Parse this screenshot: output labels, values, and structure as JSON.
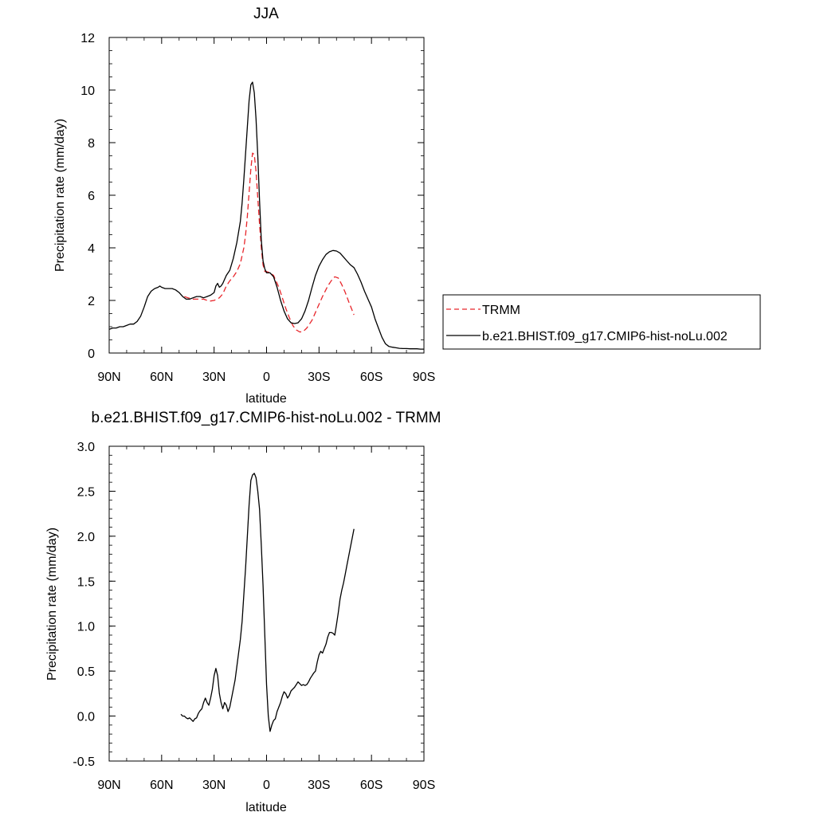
{
  "colors": {
    "model_line": "#000000",
    "trmm_line": "#e8262b",
    "frame": "#000000",
    "background": "#ffffff"
  },
  "chart_data": [
    {
      "type": "line",
      "title": "JJA",
      "xlabel": "latitude",
      "ylabel": "Precipitation rate (mm/day)",
      "xlim": [
        90,
        -90
      ],
      "ylim": [
        0,
        12
      ],
      "x_ticks": [
        {
          "value": 90,
          "label": "90N"
        },
        {
          "value": 60,
          "label": "60N"
        },
        {
          "value": 30,
          "label": "30N"
        },
        {
          "value": 0,
          "label": "0"
        },
        {
          "value": -30,
          "label": "30S"
        },
        {
          "value": -60,
          "label": "60S"
        },
        {
          "value": -90,
          "label": "90S"
        }
      ],
      "y_ticks": [
        {
          "value": 0,
          "label": "0"
        },
        {
          "value": 2,
          "label": "2"
        },
        {
          "value": 4,
          "label": "4"
        },
        {
          "value": 6,
          "label": "6"
        },
        {
          "value": 8,
          "label": "8"
        },
        {
          "value": 10,
          "label": "10"
        },
        {
          "value": 12,
          "label": "12"
        }
      ],
      "grid": false,
      "legend": "right",
      "series": [
        {
          "name": "TRMM",
          "style": "dashed",
          "color": "#e8262b",
          "x": [
            47,
            45,
            42,
            40,
            38,
            36,
            34,
            32,
            30,
            27,
            25,
            23,
            21,
            19,
            17,
            15,
            13,
            12,
            11,
            10,
            9,
            8,
            7,
            6,
            5,
            4,
            3,
            2,
            1,
            0,
            -2,
            -4,
            -5,
            -7,
            -9,
            -11,
            -13,
            -15,
            -17,
            -19,
            -21,
            -23,
            -26,
            -29,
            -32,
            -35,
            -37,
            -39,
            -41,
            -43,
            -45,
            -47,
            -50
          ],
          "y": [
            2.15,
            2.1,
            2.05,
            2.05,
            2.05,
            2.05,
            2.0,
            1.98,
            2.0,
            2.1,
            2.25,
            2.55,
            2.75,
            2.9,
            3.1,
            3.4,
            4.0,
            4.5,
            5.2,
            6.1,
            7.0,
            7.6,
            7.55,
            6.9,
            5.9,
            4.9,
            4.0,
            3.35,
            3.1,
            3.1,
            3.05,
            2.95,
            2.8,
            2.5,
            2.1,
            1.7,
            1.35,
            1.05,
            0.88,
            0.8,
            0.82,
            0.95,
            1.25,
            1.7,
            2.15,
            2.55,
            2.75,
            2.9,
            2.85,
            2.6,
            2.3,
            1.95,
            1.45
          ]
        },
        {
          "name": "b.e21.BHIST.f09_g17.CMIP6-hist-noLu.002",
          "style": "solid",
          "color": "#000000",
          "x": [
            90,
            88,
            86,
            84,
            82,
            80,
            78,
            76,
            74,
            72,
            70,
            68,
            66,
            64,
            62,
            61,
            60,
            58,
            56,
            54,
            52,
            50,
            48,
            46,
            44,
            42,
            40,
            38,
            36,
            34,
            32,
            30,
            29,
            28,
            27,
            26,
            25,
            23,
            21,
            19,
            17,
            15,
            14,
            13,
            12,
            11,
            10,
            9,
            8,
            7,
            6,
            5,
            4,
            3,
            2,
            1,
            0,
            -2,
            -4,
            -6,
            -8,
            -10,
            -12,
            -14,
            -16,
            -18,
            -20,
            -22,
            -24,
            -26,
            -28,
            -30,
            -32,
            -34,
            -36,
            -38,
            -40,
            -42,
            -44,
            -46,
            -48,
            -50,
            -52,
            -54,
            -56,
            -58,
            -60,
            -62,
            -64,
            -66,
            -68,
            -70,
            -72,
            -74,
            -76,
            -78,
            -80,
            -82,
            -84,
            -86,
            -88,
            -90
          ],
          "y": [
            0.9,
            0.95,
            0.95,
            1.0,
            1.0,
            1.05,
            1.1,
            1.1,
            1.2,
            1.4,
            1.75,
            2.15,
            2.35,
            2.45,
            2.5,
            2.55,
            2.5,
            2.45,
            2.45,
            2.45,
            2.4,
            2.3,
            2.15,
            2.05,
            2.05,
            2.1,
            2.15,
            2.15,
            2.1,
            2.15,
            2.2,
            2.3,
            2.55,
            2.65,
            2.5,
            2.55,
            2.65,
            2.95,
            3.15,
            3.6,
            4.2,
            5.0,
            5.7,
            6.6,
            7.6,
            8.6,
            9.6,
            10.2,
            10.3,
            9.9,
            8.9,
            7.5,
            5.8,
            4.3,
            3.5,
            3.2,
            3.05,
            3.05,
            2.9,
            2.5,
            2.0,
            1.6,
            1.3,
            1.15,
            1.12,
            1.15,
            1.3,
            1.6,
            2.0,
            2.5,
            2.95,
            3.3,
            3.55,
            3.75,
            3.85,
            3.9,
            3.88,
            3.8,
            3.65,
            3.5,
            3.35,
            3.25,
            3.0,
            2.7,
            2.35,
            2.05,
            1.75,
            1.3,
            0.95,
            0.6,
            0.35,
            0.25,
            0.22,
            0.2,
            0.18,
            0.17,
            0.17,
            0.16,
            0.16,
            0.16,
            0.15,
            0.15
          ]
        }
      ]
    },
    {
      "type": "line",
      "title": "b.e21.BHIST.f09_g17.CMIP6-hist-noLu.002 - TRMM",
      "xlabel": "latitude",
      "ylabel": "Precipitation rate (mm/day)",
      "xlim": [
        90,
        -90
      ],
      "ylim": [
        -0.5,
        3.0
      ],
      "x_ticks": [
        {
          "value": 90,
          "label": "90N"
        },
        {
          "value": 60,
          "label": "60N"
        },
        {
          "value": 30,
          "label": "30N"
        },
        {
          "value": 0,
          "label": "0"
        },
        {
          "value": -30,
          "label": "30S"
        },
        {
          "value": -60,
          "label": "60S"
        },
        {
          "value": -90,
          "label": "90S"
        }
      ],
      "y_ticks": [
        {
          "value": -0.5,
          "label": "-0.5"
        },
        {
          "value": 0.0,
          "label": "0.0"
        },
        {
          "value": 0.5,
          "label": "0.5"
        },
        {
          "value": 1.0,
          "label": "1.0"
        },
        {
          "value": 1.5,
          "label": "1.5"
        },
        {
          "value": 2.0,
          "label": "2.0"
        },
        {
          "value": 2.5,
          "label": "2.5"
        },
        {
          "value": 3.0,
          "label": "3.0"
        }
      ],
      "grid": false,
      "series": [
        {
          "style": "solid",
          "color": "#000000",
          "x": [
            49,
            48,
            47,
            46,
            45,
            44,
            43,
            42,
            41,
            40,
            39,
            38,
            37,
            36,
            35,
            34,
            33,
            32,
            31,
            30,
            29,
            28,
            27,
            26,
            25,
            24,
            23,
            22,
            21,
            20,
            19,
            18,
            17,
            16,
            15,
            14,
            13,
            12,
            11,
            10,
            9,
            8,
            7,
            6,
            5,
            4,
            3,
            2,
            1,
            0,
            -1,
            -2,
            -3,
            -4,
            -5,
            -6,
            -7,
            -8,
            -9,
            -10,
            -11,
            -12,
            -13,
            -14,
            -15,
            -16,
            -17,
            -18,
            -19,
            -20,
            -21,
            -22,
            -23,
            -24,
            -25,
            -26,
            -27,
            -28,
            -29,
            -30,
            -31,
            -32,
            -33,
            -34,
            -35,
            -36,
            -37,
            -38,
            -39,
            -40,
            -41,
            -42,
            -43,
            -44,
            -45,
            -46,
            -47,
            -48,
            -49,
            -50
          ],
          "y": [
            0.02,
            0.0,
            0.0,
            -0.02,
            -0.03,
            -0.02,
            -0.04,
            -0.06,
            -0.03,
            -0.02,
            0.03,
            0.06,
            0.08,
            0.15,
            0.2,
            0.15,
            0.12,
            0.2,
            0.3,
            0.45,
            0.53,
            0.45,
            0.25,
            0.15,
            0.08,
            0.15,
            0.12,
            0.05,
            0.1,
            0.2,
            0.3,
            0.4,
            0.55,
            0.7,
            0.85,
            1.05,
            1.35,
            1.65,
            2.0,
            2.35,
            2.62,
            2.68,
            2.7,
            2.65,
            2.5,
            2.3,
            1.9,
            1.45,
            0.9,
            0.35,
            0.0,
            -0.17,
            -0.1,
            -0.05,
            -0.03,
            0.05,
            0.1,
            0.15,
            0.22,
            0.27,
            0.25,
            0.2,
            0.23,
            0.28,
            0.3,
            0.32,
            0.35,
            0.38,
            0.36,
            0.34,
            0.35,
            0.34,
            0.35,
            0.38,
            0.42,
            0.45,
            0.48,
            0.5,
            0.6,
            0.68,
            0.72,
            0.7,
            0.75,
            0.8,
            0.88,
            0.93,
            0.93,
            0.92,
            0.9,
            1.02,
            1.15,
            1.3,
            1.4,
            1.48,
            1.58,
            1.68,
            1.78,
            1.88,
            1.98,
            2.08
          ]
        }
      ]
    }
  ]
}
